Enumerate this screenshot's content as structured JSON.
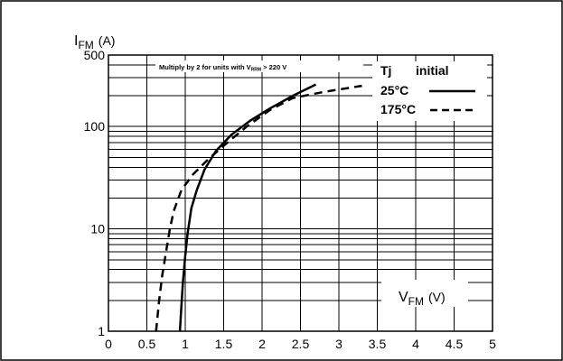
{
  "chart_data": {
    "type": "line",
    "y_axis": {
      "scale": "log",
      "range": [
        1,
        500
      ],
      "major_ticks": [
        1,
        10,
        100,
        500
      ],
      "tick_labels": [
        "1",
        "10",
        "100",
        "500"
      ],
      "label_main": "I",
      "label_sub": "FM",
      "label_unit": "(A)"
    },
    "x_axis": {
      "scale": "linear",
      "range": [
        0,
        5
      ],
      "ticks": [
        0,
        0.5,
        1,
        1.5,
        2,
        2.5,
        3,
        3.5,
        4,
        4.5,
        5
      ],
      "tick_labels": [
        "0",
        "0.5",
        "1",
        "1.5",
        "2",
        "2.5",
        "3",
        "3.5",
        "4",
        "4.5",
        "5"
      ],
      "label_main": "V",
      "label_sub": "FM",
      "label_unit": "(V)"
    },
    "grid": true,
    "note": {
      "text": "Multiply by 2 for units with V",
      "sub": "RRM",
      "tail": " > 220 V"
    },
    "legend": {
      "position": "top-right",
      "title_left": "Tj",
      "title_right": "initial"
    },
    "series": [
      {
        "name": "25°C",
        "style": "solid",
        "color": "#000000",
        "points": [
          [
            0.93,
            1
          ],
          [
            0.95,
            1.8
          ],
          [
            0.97,
            3
          ],
          [
            1.0,
            5.5
          ],
          [
            1.03,
            9
          ],
          [
            1.08,
            16
          ],
          [
            1.15,
            24
          ],
          [
            1.25,
            38
          ],
          [
            1.4,
            58
          ],
          [
            1.6,
            83
          ],
          [
            1.85,
            115
          ],
          [
            2.1,
            150
          ],
          [
            2.4,
            200
          ],
          [
            2.7,
            258
          ]
        ]
      },
      {
        "name": "175°C",
        "style": "dashed",
        "color": "#000000",
        "points": [
          [
            0.62,
            1
          ],
          [
            0.66,
            2
          ],
          [
            0.7,
            3.5
          ],
          [
            0.75,
            6
          ],
          [
            0.8,
            10
          ],
          [
            0.85,
            15
          ],
          [
            0.95,
            24
          ],
          [
            1.1,
            34
          ],
          [
            1.3,
            48
          ],
          [
            1.5,
            65
          ],
          [
            1.8,
            100
          ],
          [
            2.1,
            145
          ],
          [
            2.4,
            190
          ],
          [
            2.8,
            218
          ],
          [
            3.3,
            250
          ]
        ]
      }
    ]
  }
}
